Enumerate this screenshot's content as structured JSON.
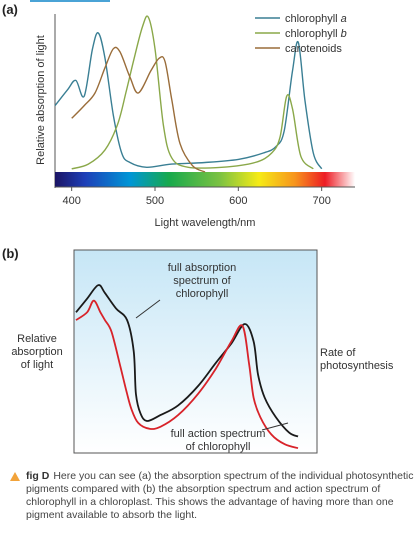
{
  "panel_a_label": "(a)",
  "panel_b_label": "(b)",
  "chart_data": [
    {
      "type": "line",
      "panel": "(a)",
      "xlabel": "Light wavelength/nm",
      "ylabel": "Relative absorption of light",
      "xlim": [
        380,
        740
      ],
      "xticks": [
        400,
        500,
        600,
        700
      ],
      "xtick_labels": [
        "400",
        "500",
        "600",
        "700"
      ],
      "ylim": [
        0,
        1
      ],
      "legend_position": "top-right",
      "series": [
        {
          "name": "chlorophyll a",
          "color": "#3a7f94",
          "x": [
            380,
            395,
            405,
            415,
            425,
            432,
            440,
            450,
            460,
            470,
            490,
            520,
            560,
            600,
            630,
            645,
            655,
            665,
            672,
            680,
            690,
            700
          ],
          "y": [
            0.42,
            0.52,
            0.58,
            0.48,
            0.78,
            0.88,
            0.72,
            0.36,
            0.12,
            0.06,
            0.03,
            0.05,
            0.06,
            0.08,
            0.12,
            0.16,
            0.26,
            0.64,
            0.82,
            0.45,
            0.12,
            0.02
          ]
        },
        {
          "name": "chlorophyll b",
          "color": "#8aa849",
          "x": [
            400,
            420,
            440,
            455,
            465,
            475,
            485,
            492,
            500,
            510,
            520,
            540,
            580,
            620,
            640,
            650,
            658,
            665,
            675,
            690
          ],
          "y": [
            0.02,
            0.05,
            0.14,
            0.3,
            0.5,
            0.72,
            0.92,
            0.98,
            0.78,
            0.3,
            0.09,
            0.03,
            0.03,
            0.06,
            0.12,
            0.22,
            0.48,
            0.4,
            0.1,
            0.02
          ]
        },
        {
          "name": "carotenoids",
          "color": "#9a6d3a",
          "x": [
            400,
            415,
            428,
            440,
            450,
            458,
            470,
            480,
            495,
            505,
            512,
            520,
            530,
            545,
            560
          ],
          "y": [
            0.34,
            0.42,
            0.5,
            0.66,
            0.78,
            0.76,
            0.6,
            0.5,
            0.64,
            0.72,
            0.7,
            0.46,
            0.18,
            0.04,
            0.0
          ]
        }
      ]
    },
    {
      "type": "line",
      "panel": "(b)",
      "left_label": "Relative absorption of light",
      "right_label": "Rate of photosynthesis",
      "annotations": [
        "full absorption spectrum of chlorophyll",
        "full action spectrum of chlorophyll"
      ],
      "series": [
        {
          "name": "full absorption spectrum of chlorophyll",
          "color": "#1a1a1a",
          "x": [
            0.0,
            0.05,
            0.1,
            0.13,
            0.18,
            0.23,
            0.26,
            0.27,
            0.29,
            0.32,
            0.38,
            0.46,
            0.55,
            0.63,
            0.7,
            0.76,
            0.8,
            0.82,
            0.85,
            0.9,
            0.96,
            1.0
          ],
          "y": [
            0.72,
            0.79,
            0.86,
            0.82,
            0.74,
            0.68,
            0.52,
            0.3,
            0.2,
            0.16,
            0.19,
            0.24,
            0.34,
            0.46,
            0.56,
            0.66,
            0.57,
            0.4,
            0.28,
            0.18,
            0.1,
            0.08
          ]
        },
        {
          "name": "full action spectrum of chlorophyll",
          "color": "#d8232a",
          "x": [
            0.0,
            0.05,
            0.08,
            0.11,
            0.13,
            0.16,
            0.2,
            0.23,
            0.25,
            0.28,
            0.33,
            0.38,
            0.46,
            0.55,
            0.63,
            0.7,
            0.75,
            0.78,
            0.8,
            0.83,
            0.88,
            0.94,
            1.0
          ],
          "y": [
            0.68,
            0.72,
            0.78,
            0.72,
            0.68,
            0.62,
            0.44,
            0.3,
            0.22,
            0.15,
            0.12,
            0.13,
            0.19,
            0.3,
            0.43,
            0.57,
            0.65,
            0.45,
            0.28,
            0.18,
            0.09,
            0.04,
            0.02
          ]
        }
      ]
    }
  ],
  "caption": {
    "figure_label": "fig D",
    "text": "Here you can see (a) the absorption spectrum of the individual photosynthetic pigments compared with (b) the absorption spectrum and action spectrum of chlorophyll in a chloroplast. This shows the advantage of having more than one pigment available to absorb the light."
  }
}
